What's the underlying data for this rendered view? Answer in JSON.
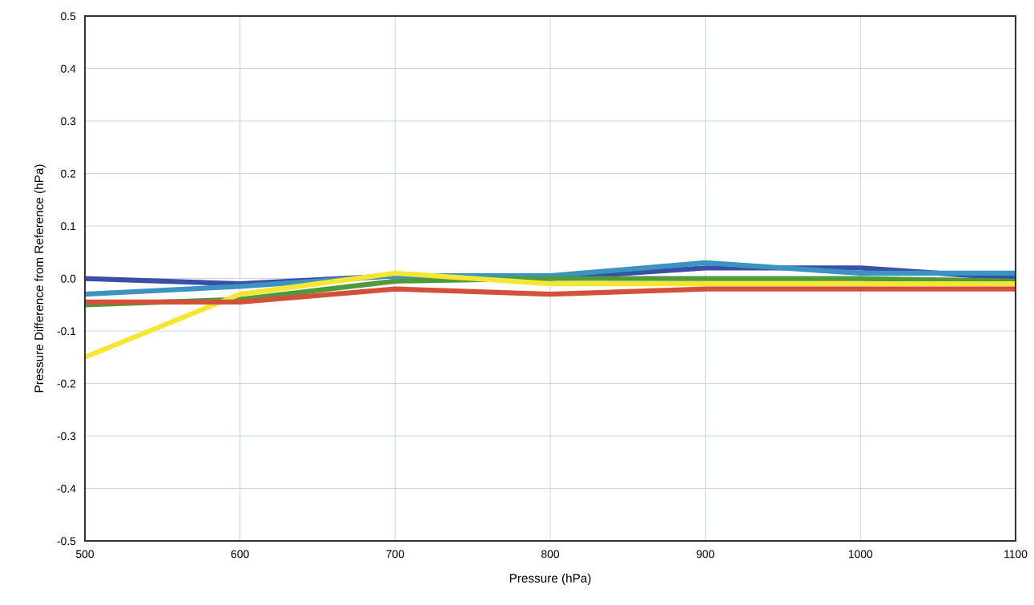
{
  "chart_data": {
    "type": "line",
    "xlabel": "Pressure (hPa)",
    "ylabel": "Pressure Difference from Reference (hPa)",
    "x": [
      500,
      600,
      700,
      800,
      900,
      1000,
      1100
    ],
    "series": [
      {
        "color": "#3a4fa8",
        "values": [
          0.0,
          -0.01,
          0.005,
          0.0,
          0.02,
          0.02,
          0.0
        ]
      },
      {
        "color": "#3a93c0",
        "values": [
          -0.03,
          -0.015,
          0.005,
          0.005,
          0.03,
          0.01,
          0.01
        ]
      },
      {
        "color": "#4f9a3c",
        "values": [
          -0.05,
          -0.04,
          -0.005,
          0.0,
          0.0,
          0.0,
          -0.005
        ]
      },
      {
        "color": "#f5e633",
        "values": [
          -0.15,
          -0.03,
          0.01,
          -0.01,
          -0.01,
          -0.01,
          -0.01
        ]
      },
      {
        "color": "#d4503a",
        "values": [
          -0.045,
          -0.045,
          -0.02,
          -0.03,
          -0.02,
          -0.02,
          -0.02
        ]
      }
    ],
    "xlim": [
      500,
      1100
    ],
    "xticks": [
      500,
      600,
      700,
      800,
      900,
      1000,
      1100
    ],
    "ylim": [
      -0.5,
      0.5
    ],
    "yticks": [
      {
        "value": -0.5,
        "label": "-0.5"
      },
      {
        "value": -0.4,
        "label": "-0.4"
      },
      {
        "value": -0.3,
        "label": "-0.3"
      },
      {
        "value": -0.2,
        "label": "-0.2"
      },
      {
        "value": -0.1,
        "label": "-0.1"
      },
      {
        "value": 0.0,
        "label": "0.0"
      },
      {
        "value": 0.1,
        "label": "0.1"
      },
      {
        "value": 0.2,
        "label": "0.2"
      },
      {
        "value": 0.3,
        "label": "0.3"
      },
      {
        "value": 0.4,
        "label": "0.4"
      },
      {
        "value": 0.5,
        "label": "0.5"
      }
    ],
    "grid": true,
    "marker": "none",
    "line_style": "solid"
  }
}
